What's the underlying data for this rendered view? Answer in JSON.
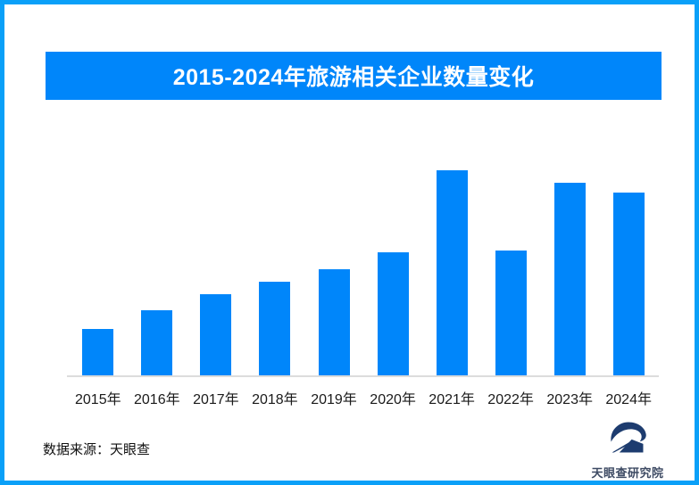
{
  "header": {
    "title": "2015-2024年旅游相关企业数量变化"
  },
  "chart_data": {
    "type": "bar",
    "title": "2015-2024年旅游相关企业数量变化",
    "categories": [
      "2015年",
      "2016年",
      "2017年",
      "2018年",
      "2019年",
      "2020年",
      "2021年",
      "2022年",
      "2023年",
      "2024年"
    ],
    "values": [
      23,
      32,
      40,
      46,
      52,
      60,
      100,
      61,
      94,
      89
    ],
    "value_scale": "relative index, tallest bar (2021) = 100; no y-axis or data labels shown",
    "xlabel": "",
    "ylabel": "",
    "ylim": [
      0,
      100
    ],
    "grid": false,
    "legend": false,
    "bar_color": "#0086fa",
    "axis_line_color": "#dcdcdc"
  },
  "footer": {
    "source_label": "数据来源：天眼查"
  },
  "logo": {
    "icon": "tianyancha-eye-logo",
    "text": "天眼查研究院",
    "color": "#1d3c6f"
  },
  "colors": {
    "frame_border": "#0aa0f8",
    "banner_background": "#0086fa",
    "banner_text": "#ffffff",
    "bar_fill": "#0086fa",
    "axis_label_text": "#1a1a1a"
  }
}
